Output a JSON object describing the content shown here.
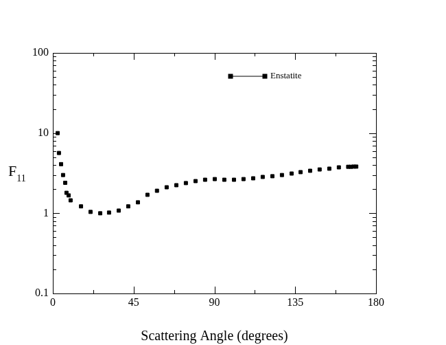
{
  "chart_data": {
    "type": "scatter",
    "x_label": "Scattering Angle (degrees)",
    "y_label": "F11",
    "log": "y",
    "grid": false,
    "legend": "upper right",
    "xlim": [
      0,
      180
    ],
    "xticks": [
      0,
      45,
      90,
      135,
      180
    ],
    "ylim": [
      0.1,
      100
    ],
    "yticks": [
      0.1,
      1,
      10,
      100
    ],
    "series": [
      {
        "name": "Enstatite",
        "color": "#000000",
        "marker": "square",
        "line_style": "none",
        "x": [
          2.7,
          3.4,
          4.6,
          5.7,
          6.9,
          7.6,
          8.8,
          9.9,
          15.7,
          21,
          26.4,
          31.3,
          36.7,
          42,
          47.4,
          52.7,
          58,
          63.4,
          68.8,
          74.1,
          79.5,
          84.8,
          90.2,
          95.5,
          100.9,
          106.2,
          111.6,
          116.9,
          122.3,
          127.6,
          133,
          138,
          143.3,
          148.6,
          154,
          159.3,
          164.5,
          166,
          167.5,
          169
        ],
        "values": [
          10.0,
          5.65,
          4.1,
          3.0,
          2.4,
          1.8,
          1.67,
          1.45,
          1.22,
          1.04,
          1.0,
          1.02,
          1.08,
          1.22,
          1.37,
          1.7,
          1.91,
          2.11,
          2.24,
          2.38,
          2.52,
          2.62,
          2.67,
          2.62,
          2.62,
          2.67,
          2.73,
          2.84,
          2.9,
          3.0,
          3.13,
          3.26,
          3.39,
          3.52,
          3.6,
          3.74,
          3.8,
          3.8,
          3.82,
          3.82
        ]
      }
    ]
  }
}
